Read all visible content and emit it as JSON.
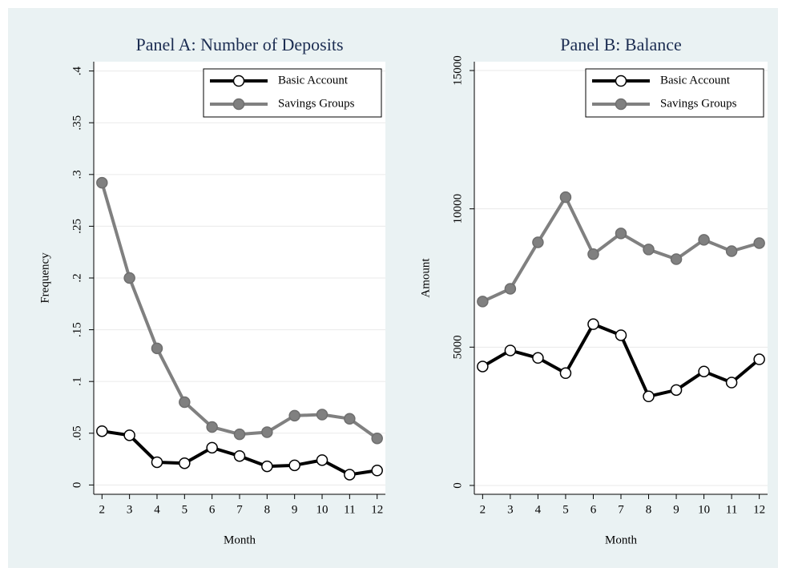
{
  "chart_data": [
    {
      "type": "line",
      "title": "Panel A: Number of Deposits",
      "xlabel": "Month",
      "ylabel": "Frequency",
      "x": [
        2,
        3,
        4,
        5,
        6,
        7,
        8,
        9,
        10,
        11,
        12
      ],
      "series": [
        {
          "name": "Basic Account",
          "color": "#000000",
          "marker": "hollow",
          "values": [
            0.052,
            0.048,
            0.022,
            0.021,
            0.036,
            0.028,
            0.018,
            0.019,
            0.024,
            0.01,
            0.014
          ]
        },
        {
          "name": "Savings Groups",
          "color": "#808080",
          "marker": "filled",
          "values": [
            0.292,
            0.2,
            0.132,
            0.08,
            0.056,
            0.049,
            0.051,
            0.067,
            0.068,
            0.064,
            0.045
          ]
        }
      ],
      "xlim": [
        1.7,
        12.3
      ],
      "xticks": [
        2,
        3,
        4,
        5,
        6,
        7,
        8,
        9,
        10,
        11,
        12
      ],
      "ylim": [
        -0.009,
        0.409
      ],
      "yticks": [
        0,
        {
          "value": 0.05,
          "label": ".05"
        },
        {
          "value": 0.1,
          "label": ".1"
        },
        {
          "value": 0.15,
          "label": ".15"
        },
        {
          "value": 0.2,
          "label": ".2"
        },
        {
          "value": 0.25,
          "label": ".25"
        },
        {
          "value": 0.3,
          "label": ".3"
        },
        {
          "value": 0.35,
          "label": ".35"
        },
        {
          "value": 0.4,
          "label": ".4"
        }
      ],
      "grid": true,
      "legend": "upper right"
    },
    {
      "type": "line",
      "title": "Panel B: Balance",
      "xlabel": "Month",
      "ylabel": "Amount",
      "x": [
        2,
        3,
        4,
        5,
        6,
        7,
        8,
        9,
        10,
        11,
        12
      ],
      "series": [
        {
          "name": "Basic Account",
          "color": "#000000",
          "marker": "hollow",
          "values": [
            4300,
            4880,
            4610,
            4060,
            5830,
            5430,
            3220,
            3450,
            4120,
            3720,
            4560
          ]
        },
        {
          "name": "Savings Groups",
          "color": "#808080",
          "marker": "filled",
          "values": [
            6650,
            7110,
            8790,
            10420,
            8360,
            9110,
            8530,
            8180,
            8880,
            8470,
            8760
          ]
        }
      ],
      "xlim": [
        1.7,
        12.3
      ],
      "xticks": [
        2,
        3,
        4,
        5,
        6,
        7,
        8,
        9,
        10,
        11,
        12
      ],
      "ylim": [
        -320,
        15320
      ],
      "yticks": [
        0,
        5000,
        10000,
        15000
      ],
      "grid": true,
      "legend": "upper right"
    }
  ]
}
